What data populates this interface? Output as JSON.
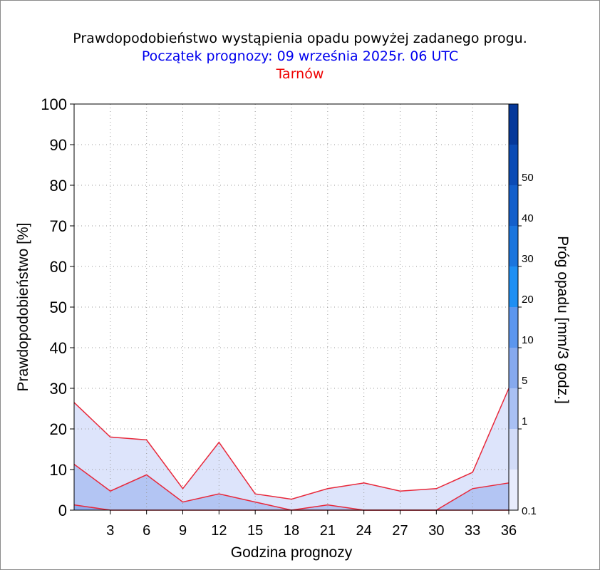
{
  "header": {
    "title": "Prawdopodobieństwo wystąpienia opadu powyżej zadanego progu.",
    "subtitle": "Początek prognozy: 09 września 2025r. 06 UTC",
    "location": "Tarnów"
  },
  "chart_data": {
    "type": "area",
    "xlabel": "Godzina prognozy",
    "ylabel": "Prawdopodobieństwo [%]",
    "colorbar_label": "Próg opadu [mm/3 godz.]",
    "x": [
      0,
      3,
      6,
      9,
      12,
      15,
      18,
      21,
      24,
      27,
      30,
      33,
      36
    ],
    "xlim": [
      0,
      36
    ],
    "ylim": [
      0,
      100
    ],
    "x_ticks": [
      3,
      6,
      9,
      12,
      15,
      18,
      21,
      24,
      27,
      30,
      33,
      36
    ],
    "y_ticks": [
      0,
      10,
      20,
      30,
      40,
      50,
      60,
      70,
      80,
      90,
      100
    ],
    "grid": true,
    "series": [
      {
        "name": "0.1",
        "color": "#dde4fb",
        "values": [
          26.5,
          18,
          17.3,
          5.3,
          16.7,
          4,
          2.7,
          5.3,
          6.7,
          4.7,
          5.3,
          9.3,
          30
        ]
      },
      {
        "name": "1",
        "color": "#b3c5f3",
        "values": [
          11.3,
          4.7,
          8.7,
          2,
          4,
          2,
          0,
          1.3,
          0,
          0,
          0,
          5.3,
          6.7
        ]
      },
      {
        "name": "5",
        "color": "#8ea9ec",
        "values": [
          1.3,
          0,
          0,
          0,
          0,
          0,
          0,
          0,
          0,
          0,
          0,
          0,
          0
        ]
      }
    ],
    "colorbar": {
      "levels": [
        "0.1",
        "1",
        "5",
        "10",
        "20",
        "30",
        "40",
        "50"
      ],
      "colors": [
        "#e8ecfc",
        "#d2dcf8",
        "#a9c0f3",
        "#86a9ee",
        "#5c96ee",
        "#1e8ff3",
        "#1a75de",
        "#135fcb",
        "#0b4bb5",
        "#05389a"
      ]
    },
    "line_color": "#e8283a"
  }
}
